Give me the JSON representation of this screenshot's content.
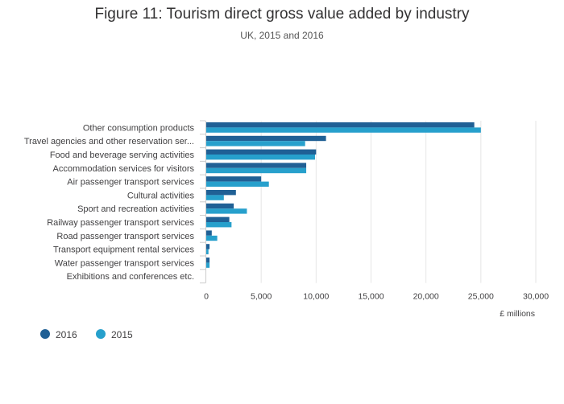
{
  "chart_data": {
    "type": "bar",
    "orientation": "horizontal",
    "title": "Figure 11: Tourism direct gross value added by industry",
    "subtitle": "UK, 2015 and 2016",
    "xlabel": "£ millions",
    "ylabel": "",
    "xlim": [
      0,
      30000
    ],
    "xticks": [
      0,
      5000,
      10000,
      15000,
      20000,
      25000,
      30000
    ],
    "xtick_labels": [
      "0",
      "5,000",
      "10,000",
      "15,000",
      "20,000",
      "25,000",
      "30,000"
    ],
    "grid": true,
    "legend_position": "bottom-left",
    "categories": [
      "Other consumption products",
      "Travel agencies and other reservation ser...",
      "Food and beverage serving activities",
      "Accommodation services for visitors",
      "Air passenger transport services",
      "Cultural activities",
      "Sport and recreation activities",
      "Railway passenger transport services",
      "Road passenger transport services",
      "Transport equipment rental services",
      "Water passenger transport services",
      "Exhibitions and conferences etc."
    ],
    "series": [
      {
        "name": "2016",
        "color": "#206095",
        "values": [
          24400,
          10900,
          10000,
          9100,
          5000,
          2700,
          2500,
          2100,
          500,
          300,
          300,
          0
        ]
      },
      {
        "name": "2015",
        "color": "#27a0cc",
        "values": [
          25000,
          9000,
          9900,
          9100,
          5700,
          1600,
          3700,
          2300,
          1000,
          200,
          300,
          0
        ]
      }
    ]
  }
}
